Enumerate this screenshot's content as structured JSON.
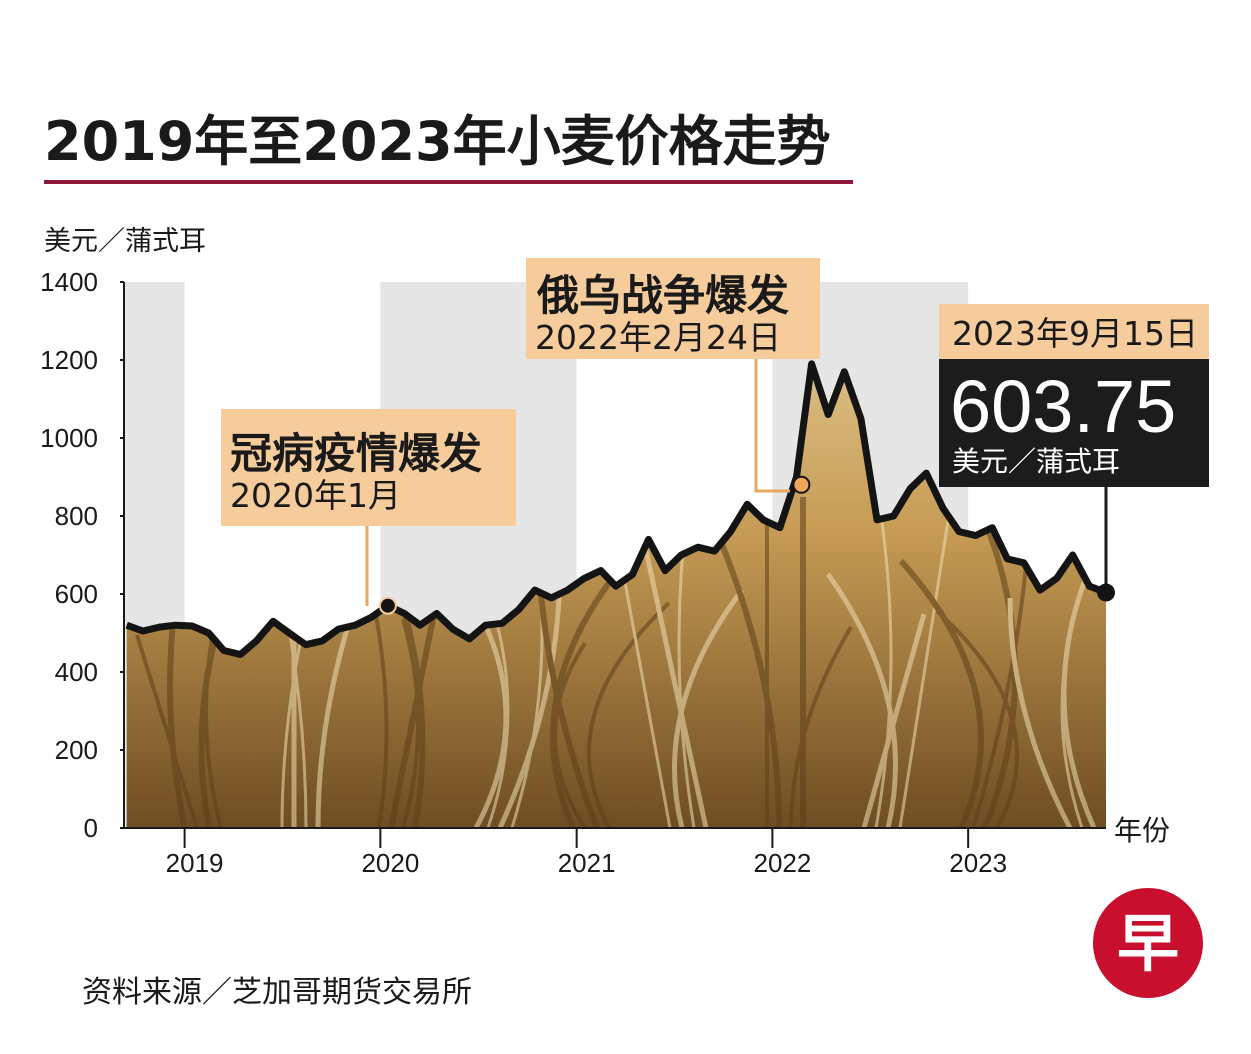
{
  "title": "2019年至2023年小麦价格走势",
  "y_unit": "美元／蒲式耳",
  "x_unit": "年份",
  "source": "资料来源／芝加哥期货交易所",
  "logo_char": "早",
  "colors": {
    "title_rule": "#8b1a3a",
    "annotation_fill": "#f6cc9c",
    "annotation_line": "#e7a860",
    "value_box": "#1c1c1c",
    "logo": "#c8102e",
    "band": "#e6e6e6",
    "wheat_light": "#e8d3a4",
    "wheat_dark": "#7a5a2c"
  },
  "annotations": {
    "covid": {
      "headline": "冠病疫情爆发",
      "date": "2020年1月"
    },
    "war": {
      "headline": "俄乌战争爆发",
      "date": "2022年2月24日"
    },
    "latest": {
      "date": "2023年9月15日",
      "value": "603.75",
      "unit": "美元／蒲式耳"
    }
  },
  "chart_data": {
    "type": "area",
    "title": "2019年至2023年小麦价格走势",
    "ylabel": "美元／蒲式耳",
    "xlabel": "年份",
    "ylim": [
      0,
      1400
    ],
    "yticks": [
      "0",
      "200",
      "400",
      "600",
      "800",
      "1000",
      "1200",
      "1400"
    ],
    "xticks": [
      "2019",
      "2020",
      "2021",
      "2022",
      "2023"
    ],
    "grid": false,
    "series": [
      {
        "values_by_date": [
          [
            "2018-09",
            520
          ],
          [
            "2018-10",
            505
          ],
          [
            "2018-11",
            515
          ],
          [
            "2018-12",
            520
          ],
          [
            "2019-01",
            518
          ],
          [
            "2019-02",
            500
          ],
          [
            "2019-03",
            455
          ],
          [
            "2019-04",
            445
          ],
          [
            "2019-05",
            480
          ],
          [
            "2019-06",
            530
          ],
          [
            "2019-07",
            500
          ],
          [
            "2019-08",
            470
          ],
          [
            "2019-09",
            480
          ],
          [
            "2019-10",
            510
          ],
          [
            "2019-11",
            520
          ],
          [
            "2019-12",
            540
          ],
          [
            "2020-01",
            570
          ],
          [
            "2020-02",
            550
          ],
          [
            "2020-03",
            520
          ],
          [
            "2020-04",
            550
          ],
          [
            "2020-05",
            510
          ],
          [
            "2020-06",
            485
          ],
          [
            "2020-07",
            520
          ],
          [
            "2020-08",
            525
          ],
          [
            "2020-09",
            560
          ],
          [
            "2020-10",
            610
          ],
          [
            "2020-11",
            590
          ],
          [
            "2020-12",
            610
          ],
          [
            "2021-01",
            640
          ],
          [
            "2021-02",
            660
          ],
          [
            "2021-03",
            620
          ],
          [
            "2021-04",
            650
          ],
          [
            "2021-05",
            740
          ],
          [
            "2021-06",
            660
          ],
          [
            "2021-07",
            700
          ],
          [
            "2021-08",
            720
          ],
          [
            "2021-09",
            710
          ],
          [
            "2021-10",
            760
          ],
          [
            "2021-11",
            830
          ],
          [
            "2021-12",
            790
          ],
          [
            "2022-01",
            770
          ],
          [
            "2022-02",
            900
          ],
          [
            "2022-03",
            1190
          ],
          [
            "2022-04",
            1060
          ],
          [
            "2022-05",
            1170
          ],
          [
            "2022-06",
            1050
          ],
          [
            "2022-07",
            790
          ],
          [
            "2022-08",
            800
          ],
          [
            "2022-09",
            870
          ],
          [
            "2022-10",
            910
          ],
          [
            "2022-11",
            820
          ],
          [
            "2022-12",
            760
          ],
          [
            "2023-01",
            750
          ],
          [
            "2023-02",
            770
          ],
          [
            "2023-03",
            690
          ],
          [
            "2023-04",
            680
          ],
          [
            "2023-05",
            610
          ],
          [
            "2023-06",
            640
          ],
          [
            "2023-07",
            700
          ],
          [
            "2023-08",
            620
          ],
          [
            "2023-09-15",
            603.75
          ]
        ]
      }
    ],
    "annotations": [
      {
        "date": "2020-01",
        "label": "冠病疫情爆发",
        "sublabel": "2020年1月"
      },
      {
        "date": "2022-02-24",
        "label": "俄乌战争爆发",
        "sublabel": "2022年2月24日"
      },
      {
        "date": "2023-09-15",
        "label": "2023年9月15日",
        "value": 603.75
      }
    ]
  }
}
